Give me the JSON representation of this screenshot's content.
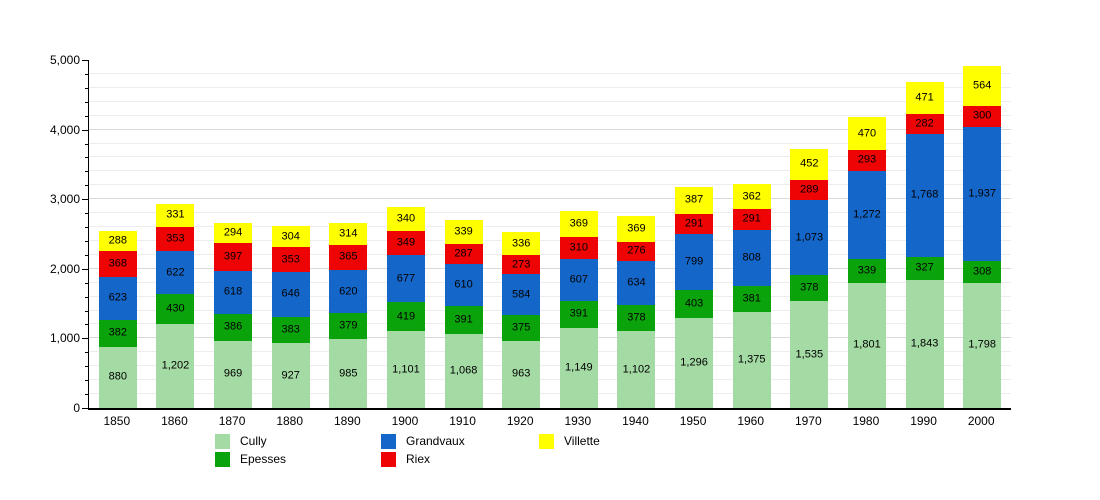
{
  "chart_data": {
    "type": "bar",
    "stacked": true,
    "title": "",
    "xlabel": "",
    "ylabel": "",
    "ylim": [
      0,
      5000
    ],
    "y_major_step": 1000,
    "y_minor_step": 200,
    "grid": true,
    "legend_position": "bottom",
    "categories": [
      "1850",
      "1860",
      "1870",
      "1880",
      "1890",
      "1900",
      "1910",
      "1920",
      "1930",
      "1940",
      "1950",
      "1960",
      "1970",
      "1980",
      "1990",
      "2000"
    ],
    "series": [
      {
        "name": "Cully",
        "color": "#a4daa4",
        "values": [
          880,
          1202,
          969,
          927,
          985,
          1101,
          1068,
          963,
          1149,
          1102,
          1296,
          1375,
          1535,
          1801,
          1843,
          1798
        ]
      },
      {
        "name": "Epesses",
        "color": "#0ba30b",
        "values": [
          382,
          430,
          386,
          383,
          379,
          419,
          391,
          375,
          391,
          378,
          403,
          381,
          378,
          339,
          327,
          308
        ]
      },
      {
        "name": "Grandvaux",
        "color": "#1566c9",
        "values": [
          623,
          622,
          618,
          646,
          620,
          677,
          610,
          584,
          607,
          634,
          799,
          808,
          1073,
          1272,
          1768,
          1937
        ]
      },
      {
        "name": "Riex",
        "color": "#ee0404",
        "values": [
          368,
          353,
          397,
          353,
          365,
          349,
          287,
          273,
          310,
          276,
          291,
          291,
          289,
          293,
          282,
          300
        ]
      },
      {
        "name": "Villette",
        "color": "#ffff00",
        "values": [
          288,
          331,
          294,
          304,
          314,
          340,
          339,
          336,
          369,
          369,
          387,
          362,
          452,
          470,
          471,
          564
        ]
      }
    ],
    "y_tick_labels": [
      "0",
      "1000",
      "2000",
      "3000",
      "4000",
      "5000"
    ],
    "legend_columns": [
      [
        "Cully",
        "Epesses"
      ],
      [
        "Grandvaux",
        "Riex"
      ],
      [
        "Villette"
      ]
    ]
  },
  "axis_color": "#000000",
  "grid_minor_color": "#ededed",
  "grid_major_color": "#d9d9d9"
}
